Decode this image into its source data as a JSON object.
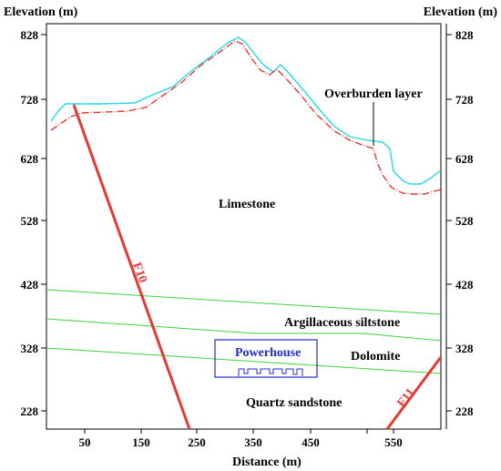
{
  "axes": {
    "left_title": "Elevation (m)",
    "right_title": "Elevation (m)",
    "x_title": "Distance (m)",
    "y_ticks": [
      "828",
      "728",
      "628",
      "528",
      "428",
      "328",
      "228"
    ],
    "x_ticks": [
      "50",
      "150",
      "250",
      "350",
      "450",
      "550"
    ]
  },
  "labels": {
    "overburden": "Overburden layer",
    "limestone": "Limestone",
    "argillaceous": "Argillaceous siltstone",
    "dolomite": "Dolomite",
    "quartz": "Quartz sandstone",
    "powerhouse": "Powerhouse",
    "fault_f10": "F10",
    "fault_f11": "F11"
  },
  "colors": {
    "fault": "#e53935",
    "surface": "#26d9e6",
    "bedrock": "#e53935",
    "strata": "#3cd23c",
    "powerhouse": "#1e2bd6"
  }
}
